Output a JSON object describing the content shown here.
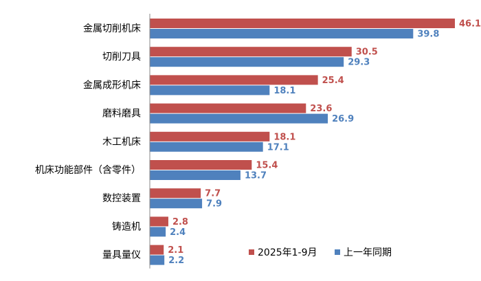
{
  "chart_data": {
    "type": "bar",
    "orientation": "horizontal",
    "categories": [
      "金属切削机床",
      "切削刀具",
      "金属成形机床",
      "磨料磨具",
      "木工机床",
      "机床功能部件（含零件）",
      "数控装置",
      "铸造机",
      "量具量仪"
    ],
    "series": [
      {
        "name": "2025年1-9月",
        "color": "#c0504d",
        "values": [
          46.1,
          30.5,
          25.4,
          23.6,
          18.1,
          15.4,
          7.7,
          2.8,
          2.1
        ]
      },
      {
        "name": "上一年同期",
        "color": "#4f81bd",
        "values": [
          39.8,
          29.3,
          18.1,
          26.9,
          17.1,
          13.7,
          7.9,
          2.4,
          2.2
        ]
      }
    ],
    "legend": "bottom-right",
    "grid": false
  }
}
